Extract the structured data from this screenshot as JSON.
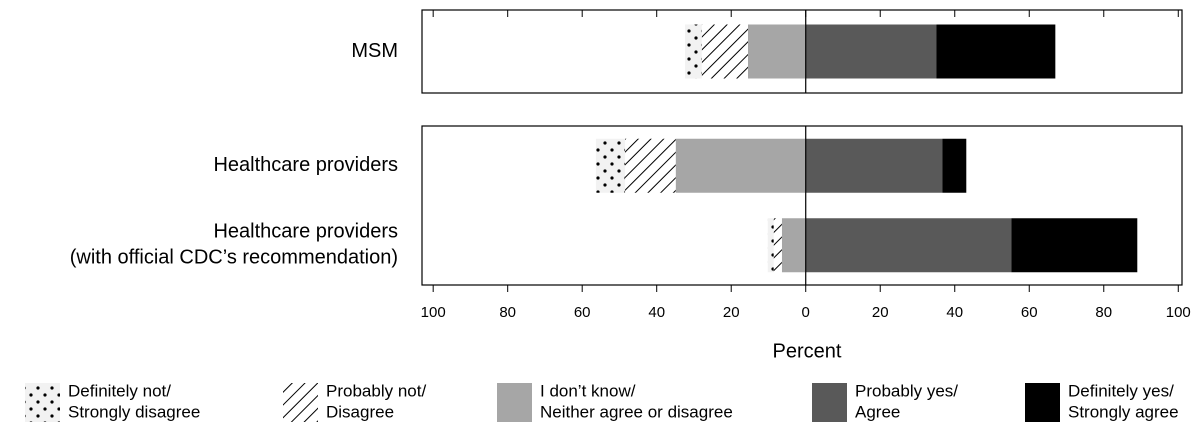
{
  "chart_data": {
    "type": "diverging-bar",
    "categories": [
      "MSM",
      "Healthcare providers",
      "Healthcare providers\n(with official CDC’s recommendation)"
    ],
    "panels": [
      1,
      2
    ],
    "xlabel": "Percent",
    "xlim": [
      -103,
      101
    ],
    "xticks": [
      {
        "value": -100,
        "label": "100"
      },
      {
        "value": -80,
        "label": "80"
      },
      {
        "value": -60,
        "label": "60"
      },
      {
        "value": -40,
        "label": "40"
      },
      {
        "value": -20,
        "label": "20"
      },
      0,
      20,
      40,
      60,
      80,
      100
    ],
    "series": [
      {
        "name": "Definitely not/\nStrongly disagree",
        "color": "#f2f2f2",
        "pattern": "dots",
        "values": [
          -4.5,
          -7.8,
          -1.6
        ]
      },
      {
        "name": "Probably not/\nDisagree",
        "color": "#ffffff",
        "pattern": "hatch",
        "values": [
          -12.4,
          -13.6,
          -2.2
        ]
      },
      {
        "name": "I don’t know/\nNeither agree or disagree",
        "color": "#a6a6a6",
        "pattern": null,
        "values": [
          -15.5,
          -34.9,
          -6.4
        ]
      },
      {
        "name": "Probably yes/\nAgree",
        "color": "#595959",
        "pattern": null,
        "values": [
          35.1,
          36.7,
          55.2
        ]
      },
      {
        "name": "Definitely yes/\nStrongly agree",
        "color": "#000000",
        "pattern": null,
        "values": [
          31.9,
          6.4,
          33.8
        ]
      }
    ]
  }
}
